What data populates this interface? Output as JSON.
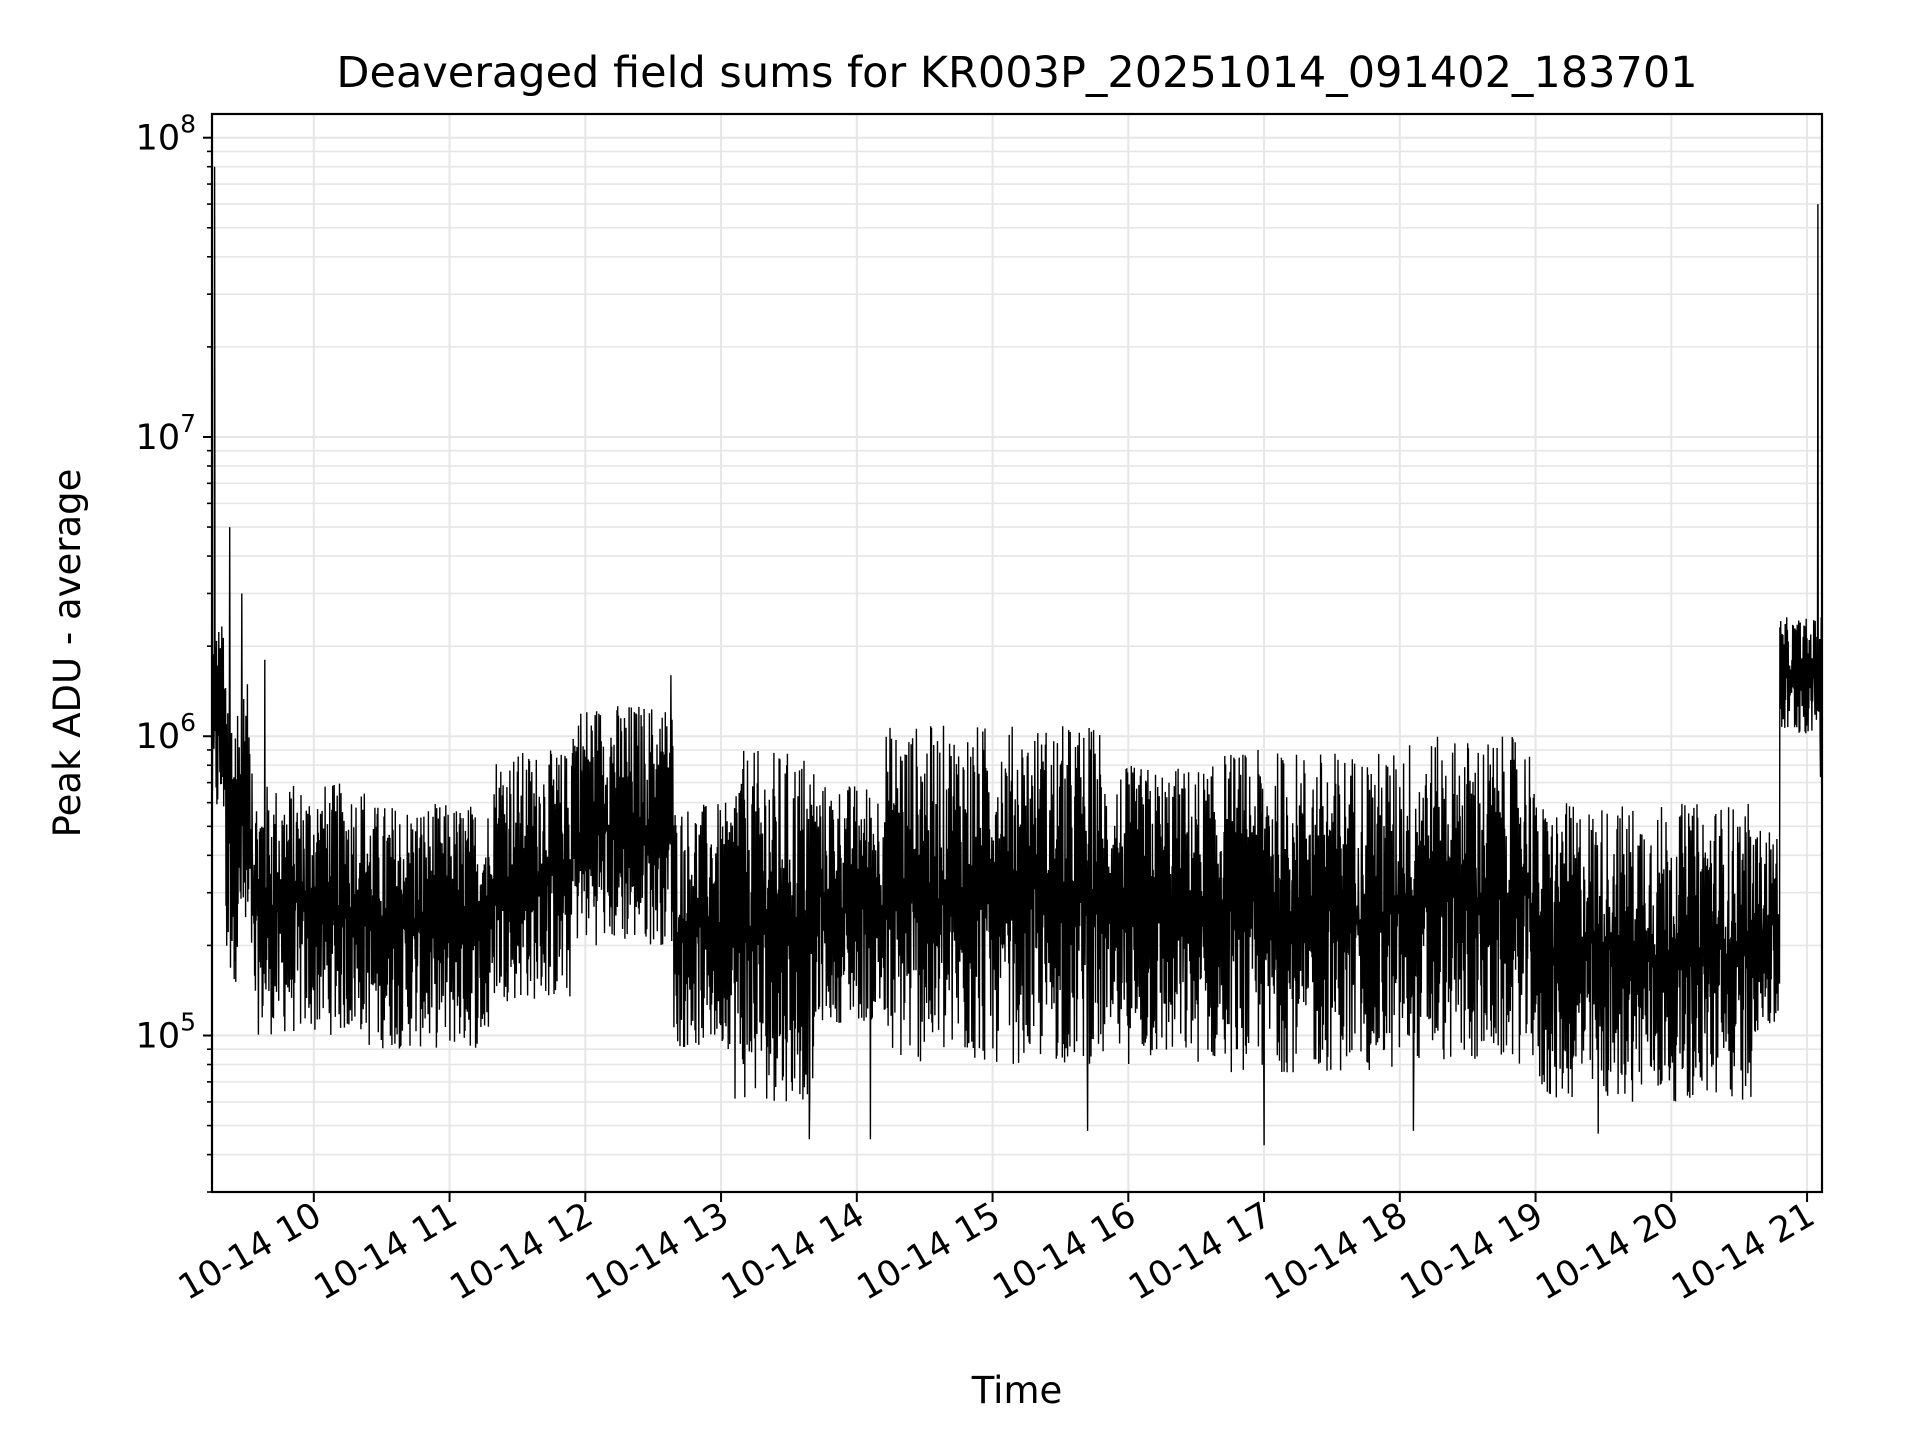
{
  "chart_data": {
    "type": "line",
    "title": "Deaveraged field sums for KR003P_20251014_091402_183701",
    "xlabel": "Time",
    "ylabel": "Peak ADU - average",
    "yscale": "log",
    "ylim": [
      30000,
      120000000
    ],
    "xlim_hours": [
      9.25,
      21.11
    ],
    "grid": true,
    "line_color": "#000000",
    "grid_color": "#e6e6e6",
    "x_ticks": [
      {
        "hour": 10,
        "label": "10-14 10"
      },
      {
        "hour": 11,
        "label": "10-14 11"
      },
      {
        "hour": 12,
        "label": "10-14 12"
      },
      {
        "hour": 13,
        "label": "10-14 13"
      },
      {
        "hour": 14,
        "label": "10-14 14"
      },
      {
        "hour": 15,
        "label": "10-14 15"
      },
      {
        "hour": 16,
        "label": "10-14 16"
      },
      {
        "hour": 17,
        "label": "10-14 17"
      },
      {
        "hour": 18,
        "label": "10-14 18"
      },
      {
        "hour": 19,
        "label": "10-14 19"
      },
      {
        "hour": 20,
        "label": "10-14 20"
      },
      {
        "hour": 21,
        "label": "10-14 21"
      }
    ],
    "y_ticks": [
      {
        "value": 100000,
        "base": "10",
        "exp": "5"
      },
      {
        "value": 1000000,
        "base": "10",
        "exp": "6"
      },
      {
        "value": 10000000,
        "base": "10",
        "exp": "7"
      },
      {
        "value": 100000000,
        "base": "10",
        "exp": "8"
      }
    ],
    "series": [
      {
        "name": "Peak ADU - average",
        "segments": [
          {
            "start": 9.25,
            "end": 9.35,
            "low": 500000,
            "high": 2500000
          },
          {
            "start": 9.35,
            "end": 9.55,
            "low": 150000,
            "high": 1500000
          },
          {
            "start": 9.55,
            "end": 10.4,
            "low": 100000,
            "high": 700000
          },
          {
            "start": 10.4,
            "end": 11.3,
            "low": 90000,
            "high": 600000
          },
          {
            "start": 11.3,
            "end": 11.9,
            "low": 130000,
            "high": 900000
          },
          {
            "start": 11.9,
            "end": 12.65,
            "low": 200000,
            "high": 1300000
          },
          {
            "start": 12.65,
            "end": 13.1,
            "low": 90000,
            "high": 600000
          },
          {
            "start": 13.1,
            "end": 13.7,
            "low": 60000,
            "high": 900000
          },
          {
            "start": 13.7,
            "end": 14.2,
            "low": 110000,
            "high": 700000
          },
          {
            "start": 14.2,
            "end": 15.8,
            "low": 80000,
            "high": 1100000
          },
          {
            "start": 15.8,
            "end": 16.7,
            "low": 80000,
            "high": 800000
          },
          {
            "start": 16.7,
            "end": 18.0,
            "low": 75000,
            "high": 900000
          },
          {
            "start": 18.0,
            "end": 19.0,
            "low": 80000,
            "high": 1000000
          },
          {
            "start": 19.0,
            "end": 20.6,
            "low": 60000,
            "high": 600000
          },
          {
            "start": 20.6,
            "end": 20.8,
            "low": 100000,
            "high": 500000
          },
          {
            "start": 20.8,
            "end": 21.11,
            "low": 1000000,
            "high": 2500000
          }
        ],
        "spikes": [
          {
            "hour": 9.27,
            "value": 80000000
          },
          {
            "hour": 9.38,
            "value": 5000000
          },
          {
            "hour": 9.47,
            "value": 3000000
          },
          {
            "hour": 9.64,
            "value": 1800000
          },
          {
            "hour": 12.63,
            "value": 1600000
          },
          {
            "hour": 13.65,
            "value": 45000
          },
          {
            "hour": 14.1,
            "value": 45000
          },
          {
            "hour": 15.7,
            "value": 48000
          },
          {
            "hour": 17.0,
            "value": 43000
          },
          {
            "hour": 18.1,
            "value": 48000
          },
          {
            "hour": 19.46,
            "value": 47000
          },
          {
            "hour": 21.08,
            "value": 60000000
          },
          {
            "hour": 21.1,
            "value": 730000
          }
        ]
      }
    ]
  }
}
